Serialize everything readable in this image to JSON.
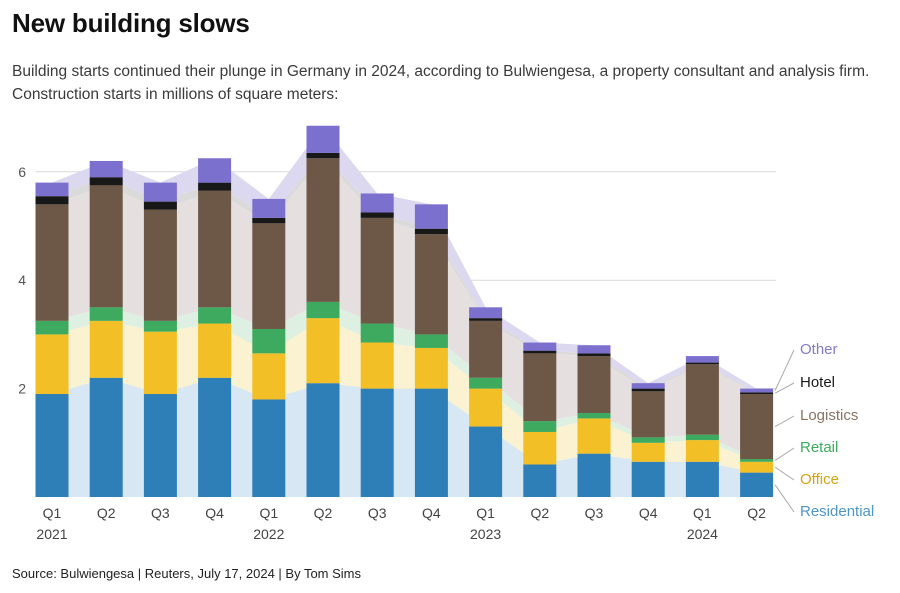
{
  "title": "New building slows",
  "subtitle": "Building starts continued their plunge in Germany in 2024, according to Bulwiengesa, a property consultant and analysis firm. Construction starts in millions of square meters:",
  "source_line": "Source: Bulwiengesa | Reuters, July 17, 2024 | By Tom Sims",
  "chart_data": {
    "type": "bar",
    "stacked": true,
    "title": "New building slows",
    "xlabel": "",
    "ylabel": "Construction starts (millions of square meters)",
    "ylim": [
      0,
      7
    ],
    "yticks": [
      2,
      4,
      6
    ],
    "grid": true,
    "legend_position": "right",
    "categories": [
      "Q1",
      "Q2",
      "Q3",
      "Q4",
      "Q1",
      "Q2",
      "Q3",
      "Q4",
      "Q1",
      "Q2",
      "Q3",
      "Q4",
      "Q1",
      "Q2"
    ],
    "year_labels": [
      {
        "index": 0,
        "label": "2021"
      },
      {
        "index": 4,
        "label": "2022"
      },
      {
        "index": 8,
        "label": "2023"
      },
      {
        "index": 12,
        "label": "2024"
      }
    ],
    "series": [
      {
        "name": "Residential",
        "color": "#2e7eb8",
        "light_color": "#d7e7f3",
        "values": [
          1.9,
          2.2,
          1.9,
          2.2,
          1.8,
          2.1,
          2.0,
          2.0,
          1.3,
          0.6,
          0.8,
          0.65,
          0.65,
          0.45
        ]
      },
      {
        "name": "Office",
        "color": "#f2c026",
        "light_color": "#faf2d0",
        "values": [
          1.1,
          1.05,
          1.15,
          1.0,
          0.85,
          1.2,
          0.85,
          0.75,
          0.7,
          0.6,
          0.65,
          0.35,
          0.4,
          0.2
        ]
      },
      {
        "name": "Retail",
        "color": "#3daa5f",
        "light_color": "#def0e1",
        "values": [
          0.25,
          0.25,
          0.2,
          0.3,
          0.45,
          0.3,
          0.35,
          0.25,
          0.2,
          0.2,
          0.1,
          0.1,
          0.1,
          0.05
        ]
      },
      {
        "name": "Logistics",
        "color": "#6d5847",
        "light_color": "#e6dfe0",
        "values": [
          2.15,
          2.25,
          2.05,
          2.15,
          1.95,
          2.65,
          1.95,
          1.85,
          1.05,
          1.25,
          1.05,
          0.85,
          1.3,
          1.2
        ]
      },
      {
        "name": "Hotel",
        "color": "#181818",
        "light_color": "#dadada",
        "values": [
          0.15,
          0.15,
          0.15,
          0.15,
          0.1,
          0.1,
          0.1,
          0.1,
          0.05,
          0.05,
          0.05,
          0.05,
          0.03,
          0.03
        ]
      },
      {
        "name": "Other",
        "color": "#7b70ce",
        "light_color": "#dcd8ef",
        "values": [
          0.25,
          0.3,
          0.35,
          0.45,
          0.35,
          0.5,
          0.35,
          0.45,
          0.2,
          0.15,
          0.15,
          0.1,
          0.12,
          0.07
        ]
      }
    ],
    "legend": [
      {
        "label": "Other",
        "color": "#817bc6"
      },
      {
        "label": "Hotel",
        "color": "#1a1a1a"
      },
      {
        "label": "Logistics",
        "color": "#8b7365"
      },
      {
        "label": "Retail",
        "color": "#3daa5f"
      },
      {
        "label": "Office",
        "color": "#d8a410"
      },
      {
        "label": "Residential",
        "color": "#4c96c8"
      }
    ]
  }
}
